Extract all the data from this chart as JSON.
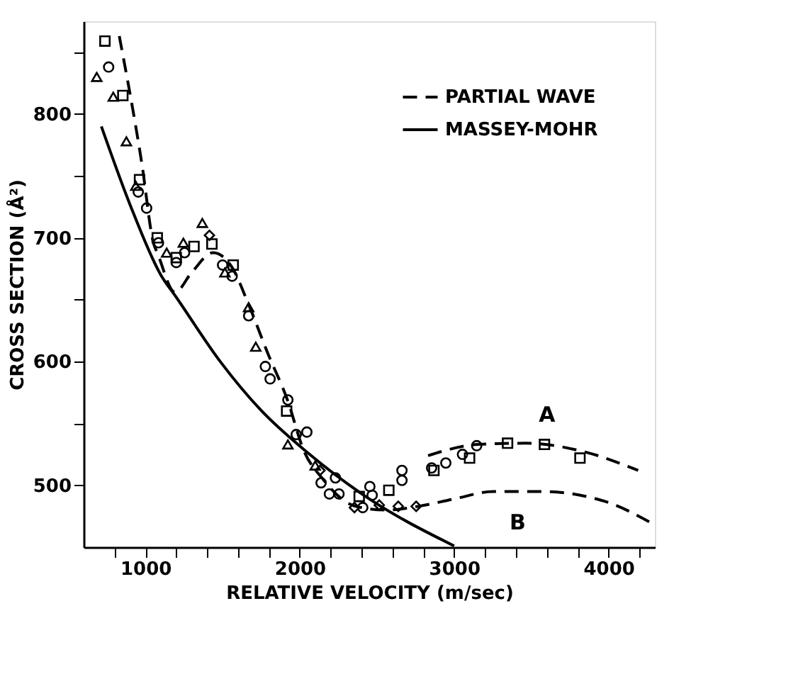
{
  "chart_data": {
    "type": "line",
    "xlabel": "RELATIVE VELOCITY (m/sec)",
    "ylabel": "CROSS SECTION (Å²)",
    "xlim": [
      600,
      4300
    ],
    "ylim": [
      450,
      875
    ],
    "xticks": [
      {
        "value": 800,
        "label": null
      },
      1000,
      {
        "value": 1200,
        "label": null
      },
      {
        "value": 1400,
        "label": null
      },
      {
        "value": 1600,
        "label": null
      },
      {
        "value": 1800,
        "label": null
      },
      2000,
      {
        "value": 2200,
        "label": null
      },
      {
        "value": 2400,
        "label": null
      },
      {
        "value": 2600,
        "label": null
      },
      {
        "value": 2800,
        "label": null
      },
      3000,
      {
        "value": 3200,
        "label": null
      },
      {
        "value": 3400,
        "label": null
      },
      {
        "value": 3600,
        "label": null
      },
      {
        "value": 3800,
        "label": null
      },
      4000,
      {
        "value": 4200,
        "label": null
      }
    ],
    "yticks": [
      500,
      {
        "value": 550,
        "label": null
      },
      600,
      {
        "value": 650,
        "label": null
      },
      700,
      {
        "value": 750,
        "label": null
      },
      800,
      {
        "value": 850,
        "label": null
      }
    ],
    "grid": false,
    "legend": "top right",
    "series": [
      {
        "name": "PARTIAL WAVE",
        "line_style": "dashed",
        "color": "#000000",
        "x": [
          831,
          977,
          1054,
          1077,
          1192,
          1300,
          1438,
          1562,
          1669,
          1792,
          1923,
          2023,
          2150,
          2362,
          2562,
          2769,
          3000,
          3254,
          3562,
          3977,
          4285
        ],
        "values": [
          863,
          760,
          695,
          688,
          656,
          672,
          688,
          676,
          646,
          607,
          568,
          529,
          505,
          483,
          480,
          483,
          489,
          495,
          495,
          487,
          469
        ]
      },
      {
        "name": "MASSEY-MOHR",
        "line_style": "solid",
        "color": "#000000",
        "x": [
          715,
          900,
          1100,
          1200,
          1485,
          1746,
          2054,
          2438,
          3000
        ],
        "values": [
          790,
          727,
          670,
          652,
          600,
          561,
          526,
          490,
          451
        ]
      },
      {
        "line_style": "dashed",
        "color": "#000000",
        "x": [
          2831,
          3154,
          3462,
          3846,
          4192
        ],
        "values": [
          524,
          533,
          534,
          527,
          512
        ]
      },
      {
        "type": "scatter",
        "marker": "triangle",
        "color": "#000000",
        "x": [
          685,
          792,
          877,
          938,
          1138,
          1246,
          1369,
          1515,
          1669,
          1715,
          1923,
          2100
        ],
        "values": [
          830,
          814,
          778,
          742,
          688,
          696,
          712,
          672,
          644,
          612,
          533,
          516
        ]
      },
      {
        "type": "scatter",
        "marker": "circle",
        "color": "#000000",
        "x": [
          762,
          954,
          1008,
          1085,
          1200,
          1254,
          1500,
          1562,
          1669,
          1777,
          1808,
          1923,
          1977,
          2046,
          2138,
          2192,
          2231,
          2254,
          2408,
          2454,
          2469,
          2662,
          2662,
          2854,
          2946,
          3054,
          3146
        ],
        "values": [
          838,
          737,
          724,
          696,
          680,
          688,
          678,
          669,
          637,
          596,
          586,
          569,
          541,
          543,
          502,
          493,
          506,
          493,
          482,
          499,
          492,
          512,
          504,
          514,
          518,
          525,
          532
        ]
      },
      {
        "type": "scatter",
        "marker": "square",
        "color": "#000000",
        "x": [
          738,
          854,
          962,
          1077,
          1200,
          1315,
          1431,
          1569,
          1915,
          2385,
          2577,
          2869,
          3100,
          3346,
          3585,
          3815
        ],
        "values": [
          859,
          815,
          747,
          700,
          684,
          693,
          695,
          678,
          560,
          491,
          496,
          512,
          522,
          534,
          533,
          522
        ]
      },
      {
        "type": "scatter",
        "marker": "diamond",
        "color": "#000000",
        "x": [
          1415,
          2131,
          2354,
          2515,
          2638,
          2754
        ],
        "values": [
          702,
          512,
          482,
          484,
          483,
          483
        ]
      }
    ],
    "annotations": [
      {
        "text": "A",
        "x": 3420,
        "y": 534
      },
      {
        "text": "B",
        "x": 3230,
        "y": 495
      }
    ]
  }
}
